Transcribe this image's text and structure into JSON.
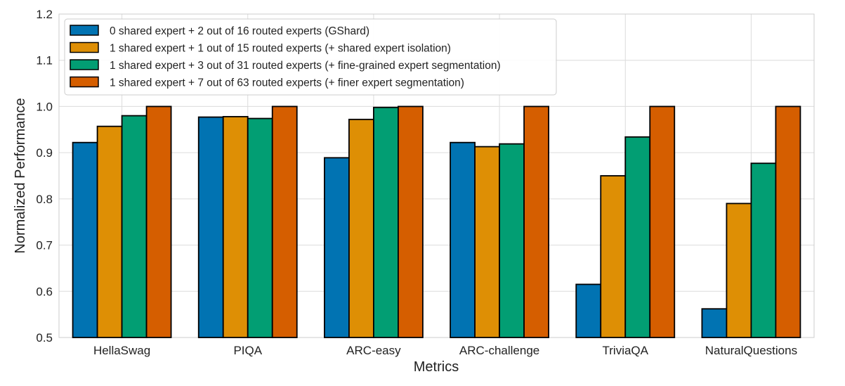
{
  "chart_data": {
    "type": "bar",
    "title": "",
    "xlabel": "Metrics",
    "ylabel": "Normalized Performance",
    "ylim": [
      0.5,
      1.2
    ],
    "yticks": [
      "0.5",
      "0.6",
      "0.7",
      "0.8",
      "0.9",
      "1.0",
      "1.1",
      "1.2"
    ],
    "grid": true,
    "legend_position": "top-left",
    "categories": [
      "HellaSwag",
      "PIQA",
      "ARC-easy",
      "ARC-challenge",
      "TriviaQA",
      "NaturalQuestions"
    ],
    "series": [
      {
        "name": "0 shared expert + 2 out of 16 routed experts (GShard)",
        "color": "#0173b2",
        "values": [
          0.922,
          0.977,
          0.889,
          0.922,
          0.615,
          0.562
        ]
      },
      {
        "name": "1 shared expert + 1 out of 15 routed experts (+ shared expert isolation)",
        "color": "#de8f05",
        "values": [
          0.957,
          0.978,
          0.972,
          0.913,
          0.85,
          0.79
        ]
      },
      {
        "name": "1 shared expert + 3 out of 31 routed experts (+ fine-grained expert segmentation)",
        "color": "#029e73",
        "values": [
          0.98,
          0.974,
          0.998,
          0.919,
          0.934,
          0.877
        ]
      },
      {
        "name": "1 shared expert + 7 out of 63 routed experts (+ finer expert segmentation)",
        "color": "#d55e00",
        "values": [
          1.0,
          1.0,
          1.0,
          1.0,
          1.0,
          1.0
        ]
      }
    ]
  }
}
